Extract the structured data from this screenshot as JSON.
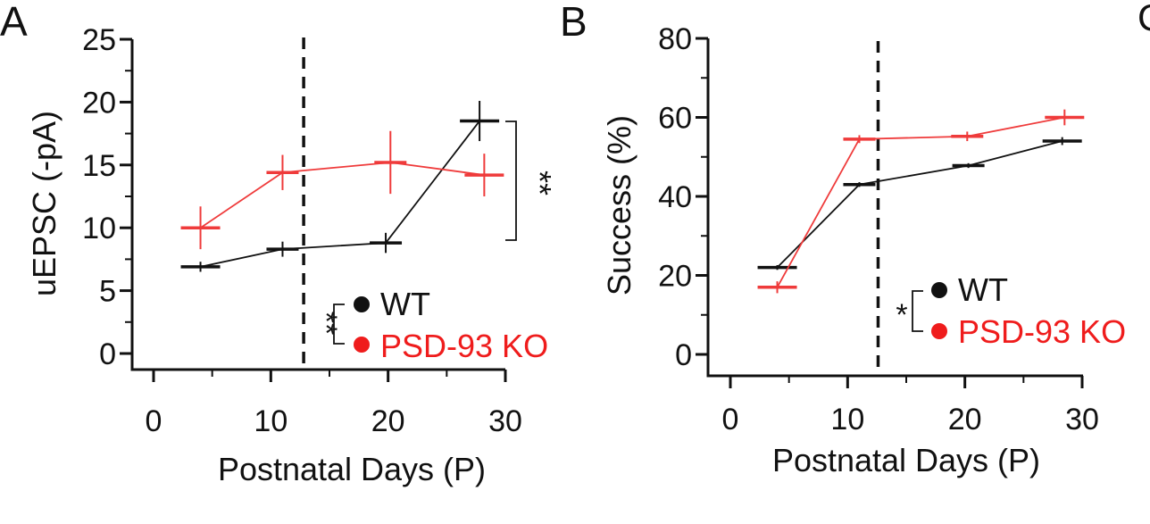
{
  "chart_data": [
    {
      "panel_label": "A",
      "type": "line",
      "xlabel": "Postnatal Days (P)",
      "ylabel": "uEPSC (-pA)",
      "xlim": [
        -2,
        30
      ],
      "ylim": [
        -1,
        25
      ],
      "xticks": [
        0,
        10,
        20,
        30
      ],
      "xtick_labels": [
        "0",
        "10",
        "20",
        "30"
      ],
      "yticks": [
        0,
        5,
        10,
        15,
        20,
        25
      ],
      "ytick_labels": [
        "0",
        "5",
        "10",
        "15",
        "20",
        "25"
      ],
      "vline_x": 12.8,
      "series": [
        {
          "name": "WT",
          "color": "#111111",
          "points": [
            {
              "x": 4,
              "y": 6.9,
              "err": 0.4
            },
            {
              "x": 11,
              "y": 8.3,
              "err": 0.6
            },
            {
              "x": 19.8,
              "y": 8.8,
              "err": 0.8
            },
            {
              "x": 27.8,
              "y": 18.5,
              "err": 1.6
            }
          ]
        },
        {
          "name": "PSD-93 KO",
          "color": "#ef3b3b",
          "points": [
            {
              "x": 4,
              "y": 10.0,
              "err": 1.7
            },
            {
              "x": 11,
              "y": 14.4,
              "err": 1.4
            },
            {
              "x": 20.2,
              "y": 15.2,
              "err": 2.5
            },
            {
              "x": 28.2,
              "y": 14.2,
              "err": 1.7
            }
          ]
        }
      ],
      "legend": {
        "placement": "lower-right",
        "items": [
          {
            "label": "WT",
            "color": "#111111"
          },
          {
            "label": "PSD-93 KO",
            "color": "#ef3b3b"
          }
        ],
        "significance": "**"
      },
      "annotations": [
        {
          "text": "**",
          "type": "bracket",
          "y_range": [
            9.0,
            18.5
          ]
        }
      ]
    },
    {
      "panel_label": "B",
      "type": "line",
      "xlabel": "Postnatal Days (P)",
      "ylabel": "Success (%)",
      "xlim": [
        -2,
        30
      ],
      "ylim": [
        -3,
        80
      ],
      "xticks": [
        0,
        10,
        20,
        30
      ],
      "xtick_labels": [
        "0",
        "10",
        "20",
        "30"
      ],
      "yticks": [
        0,
        20,
        40,
        60,
        80
      ],
      "ytick_labels": [
        "0",
        "20",
        "40",
        "60",
        "80"
      ],
      "vline_x": 12.6,
      "series": [
        {
          "name": "WT",
          "color": "#111111",
          "points": [
            {
              "x": 4,
              "y": 22.0,
              "err": 0.6
            },
            {
              "x": 11,
              "y": 43.0,
              "err": 0.6
            },
            {
              "x": 20.3,
              "y": 47.8,
              "err": 0.6
            },
            {
              "x": 28.3,
              "y": 54.0,
              "err": 1.0
            }
          ]
        },
        {
          "name": "PSD-93 KO",
          "color": "#ef3b3b",
          "points": [
            {
              "x": 4,
              "y": 17.0,
              "err": 1.5
            },
            {
              "x": 11,
              "y": 54.5,
              "err": 1.0
            },
            {
              "x": 20.2,
              "y": 55.2,
              "err": 1.2
            },
            {
              "x": 28.5,
              "y": 60.0,
              "err": 2.0
            }
          ]
        }
      ],
      "legend": {
        "placement": "lower-right",
        "items": [
          {
            "label": "WT",
            "color": "#111111"
          },
          {
            "label": "PSD-93 KO",
            "color": "#ef3b3b"
          }
        ],
        "significance": "*"
      },
      "annotations": []
    }
  ],
  "extra_panel_label": "C"
}
